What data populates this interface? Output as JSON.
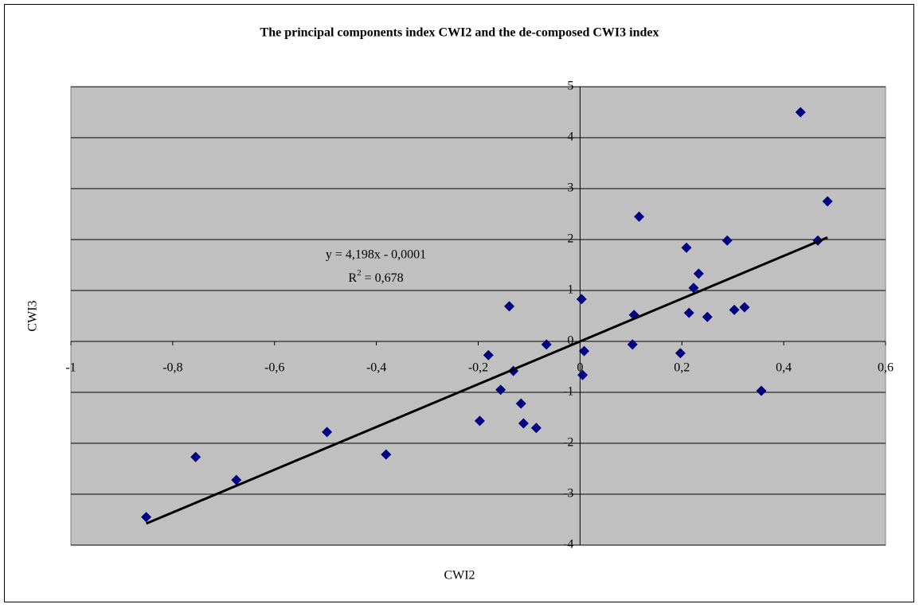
{
  "chart_data": {
    "type": "scatter",
    "title": "The principal components index CWI2 and the de-composed CWI3 index",
    "x_label": "CWI2",
    "y_label": "CWI3",
    "x": [
      -0.852,
      -0.755,
      -0.675,
      -0.497,
      -0.381,
      -0.197,
      -0.18,
      -0.156,
      -0.139,
      -0.131,
      -0.116,
      -0.111,
      -0.086,
      -0.066,
      0.003,
      0.008,
      0.005,
      0.103,
      0.106,
      0.116,
      0.197,
      0.209,
      0.214,
      0.223,
      0.233,
      0.25,
      0.289,
      0.303,
      0.323,
      0.356,
      0.433,
      0.467,
      0.486
    ],
    "values": [
      -3.45,
      -2.27,
      -2.72,
      -1.78,
      -2.22,
      -1.56,
      -0.27,
      -0.95,
      0.69,
      -0.58,
      -1.22,
      -1.61,
      -1.7,
      -0.06,
      0.83,
      -0.19,
      -0.66,
      -0.06,
      0.52,
      2.45,
      -0.23,
      1.84,
      0.56,
      1.05,
      1.33,
      0.48,
      1.98,
      0.62,
      0.67,
      -0.97,
      4.5,
      1.98,
      2.75
    ],
    "color": "#000080",
    "trendline": {
      "slope": 4.198,
      "intercept": -0.0001,
      "r2": 0.678,
      "color": "#000000",
      "equation_label": "y = 4,198x - 0,0001",
      "r2_label": [
        "R",
        "2",
        " = 0,678"
      ]
    },
    "xlim": [
      -1,
      0.6
    ],
    "xticks": [
      {
        "value": -1,
        "label": "-1"
      },
      {
        "value": -0.8,
        "label": "-0,8"
      },
      {
        "value": -0.6,
        "label": "-0,6"
      },
      {
        "value": -0.4,
        "label": "-0,4"
      },
      {
        "value": -0.2,
        "label": "-0,2"
      },
      {
        "value": 0,
        "label": "0"
      },
      {
        "value": 0.2,
        "label": "0,2"
      },
      {
        "value": 0.4,
        "label": "0,4"
      },
      {
        "value": 0.6,
        "label": "0,6"
      }
    ],
    "ylim": [
      -4,
      5
    ],
    "yticks": [
      -4,
      -3,
      -2,
      -1,
      0,
      1,
      2,
      3,
      4,
      5
    ],
    "grid": true,
    "plot_background": "#c0c0c0"
  }
}
